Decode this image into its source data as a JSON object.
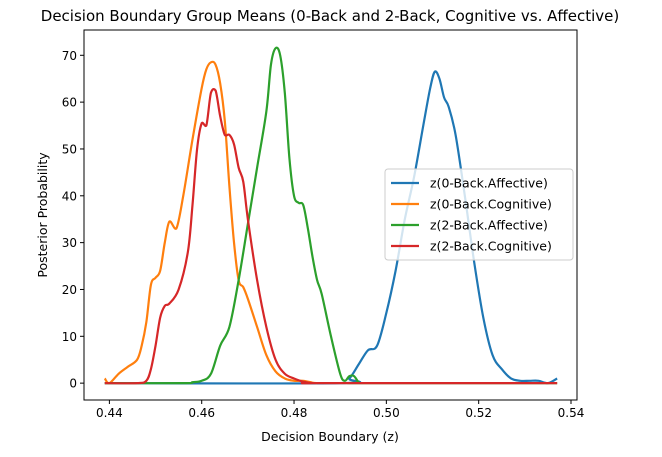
{
  "chart_data": {
    "type": "line",
    "title": "Decision Boundary Group Means (0-Back and 2-Back, Cognitive vs. Affective)",
    "xlabel": "Decision Boundary (z)",
    "ylabel": "Posterior Probability",
    "xlim": [
      0.4345,
      0.5413
    ],
    "ylim": [
      -3.6,
      75.4
    ],
    "xticks": [
      0.44,
      0.46,
      0.48,
      0.5,
      0.52,
      0.54
    ],
    "xtick_labels": [
      "0.44",
      "0.46",
      "0.48",
      "0.50",
      "0.52",
      "0.54"
    ],
    "yticks": [
      0,
      10,
      20,
      30,
      40,
      50,
      60,
      70
    ],
    "ytick_labels": [
      "0",
      "10",
      "20",
      "30",
      "40",
      "50",
      "60",
      "70"
    ],
    "grid": false,
    "legend_position": "center-right",
    "series": [
      {
        "name": "z(0-Back.Affective)",
        "color": "#1f77b4",
        "x": [
          0.439,
          0.49,
          0.492,
          0.494,
          0.496,
          0.498,
          0.5,
          0.502,
          0.504,
          0.506,
          0.508,
          0.5095,
          0.5105,
          0.5115,
          0.5125,
          0.5135,
          0.515,
          0.517,
          0.519,
          0.521,
          0.523,
          0.525,
          0.527,
          0.529,
          0.531,
          0.533,
          0.535,
          0.537
        ],
        "y": [
          0,
          0,
          1,
          4,
          7,
          8,
          15,
          24,
          35,
          44,
          55,
          63,
          66.5,
          65,
          61,
          59,
          53,
          40,
          26,
          14,
          6,
          3,
          1,
          0.5,
          0.5,
          0.5,
          0,
          1
        ]
      },
      {
        "name": "z(0-Back.Cognitive)",
        "color": "#ff7f0e",
        "x": [
          0.439,
          0.44,
          0.442,
          0.444,
          0.446,
          0.447,
          0.448,
          0.449,
          0.45,
          0.451,
          0.452,
          0.453,
          0.4545,
          0.456,
          0.458,
          0.46,
          0.461,
          0.462,
          0.463,
          0.464,
          0.465,
          0.466,
          0.467,
          0.468,
          0.469,
          0.47,
          0.472,
          0.474,
          0.476,
          0.478,
          0.48,
          0.482,
          0.484,
          0.485
        ],
        "y": [
          1,
          0,
          2,
          3.5,
          5,
          8,
          13,
          21,
          22.5,
          24,
          30,
          34.5,
          33,
          40,
          52,
          63,
          67,
          68.5,
          68,
          64,
          56,
          42,
          30,
          22,
          20.5,
          18,
          12,
          6,
          2.5,
          1,
          0.5,
          0.5,
          0.1,
          0
        ]
      },
      {
        "name": "z(2-Back.Affective)",
        "color": "#2ca02c",
        "x": [
          0.439,
          0.456,
          0.458,
          0.46,
          0.462,
          0.464,
          0.466,
          0.468,
          0.47,
          0.472,
          0.474,
          0.475,
          0.476,
          0.477,
          0.478,
          0.479,
          0.48,
          0.481,
          0.482,
          0.483,
          0.484,
          0.485,
          0.486,
          0.488,
          0.49,
          0.491,
          0.492,
          0.493,
          0.494,
          0.495,
          0.537
        ],
        "y": [
          0,
          0,
          0.2,
          0.5,
          2,
          8,
          12,
          22,
          34,
          46,
          58,
          68,
          71.5,
          70,
          62,
          48,
          40,
          38.5,
          38,
          33,
          27,
          22,
          19,
          10,
          2,
          0.5,
          1.5,
          1.5,
          0.2,
          0,
          0
        ]
      },
      {
        "name": "z(2-Back.Cognitive)",
        "color": "#d62728",
        "x": [
          0.439,
          0.446,
          0.448,
          0.449,
          0.45,
          0.451,
          0.452,
          0.453,
          0.455,
          0.457,
          0.458,
          0.459,
          0.46,
          0.461,
          0.462,
          0.463,
          0.464,
          0.465,
          0.466,
          0.467,
          0.468,
          0.469,
          0.47,
          0.472,
          0.474,
          0.476,
          0.478,
          0.48,
          0.482,
          0.484,
          0.486,
          0.537
        ],
        "y": [
          0,
          0,
          0.5,
          3,
          8,
          14,
          16.5,
          17,
          20,
          28,
          38,
          50,
          55.5,
          55,
          62,
          62.5,
          57,
          53,
          53,
          51,
          46,
          43,
          35,
          22,
          12,
          5,
          2,
          1,
          0.3,
          0,
          0,
          0
        ]
      }
    ]
  }
}
